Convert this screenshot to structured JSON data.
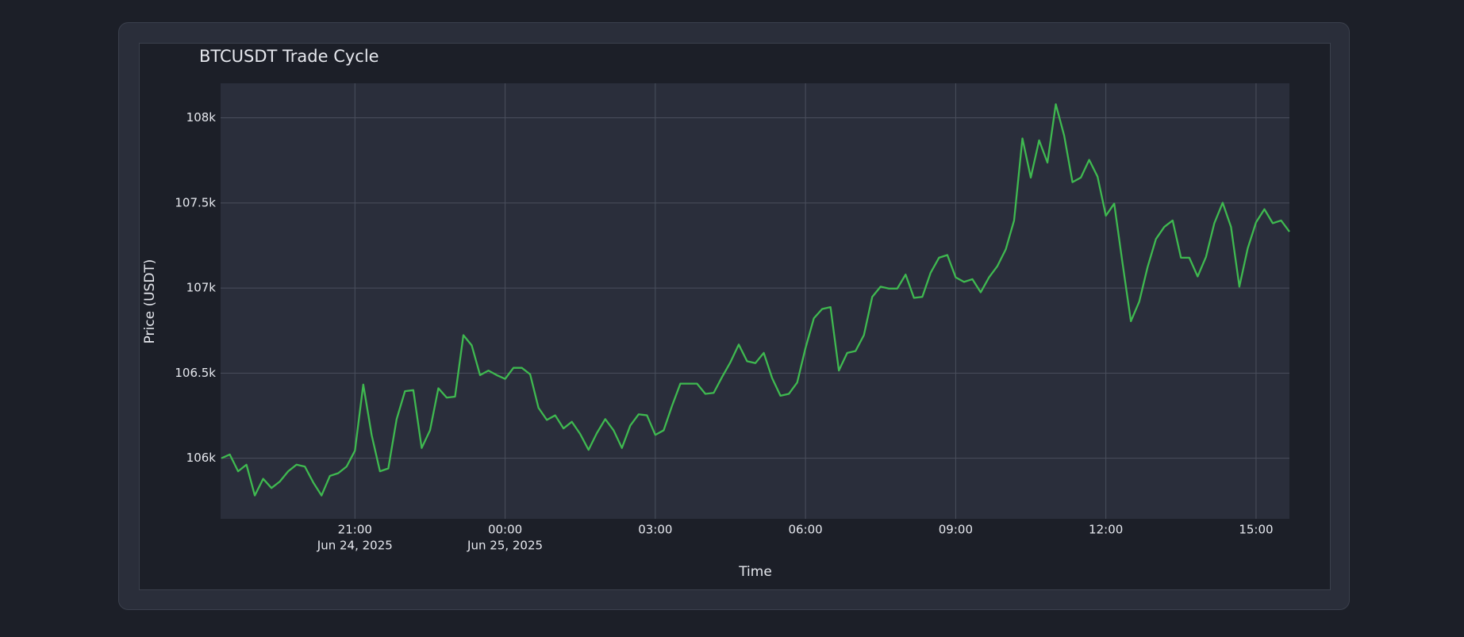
{
  "chart_data": {
    "type": "line",
    "title": "BTCUSDT Trade Cycle",
    "x_label": "Time",
    "y_label": "Price (USDT)",
    "color": "#3fb950",
    "grid": true,
    "xlim": [
      "2025-06-24 18:19",
      "2025-06-25 15:40"
    ],
    "xticks": [
      {
        "value": "2025-06-24 21:00",
        "label": [
          "21:00",
          "Jun 24, 2025"
        ]
      },
      {
        "value": "2025-06-25 00:00",
        "label": [
          "00:00",
          "Jun 25, 2025"
        ]
      },
      {
        "value": "2025-06-25 03:00",
        "label": "03:00"
      },
      {
        "value": "2025-06-25 06:00",
        "label": "06:00"
      },
      {
        "value": "2025-06-25 09:00",
        "label": "09:00"
      },
      {
        "value": "2025-06-25 12:00",
        "label": "12:00"
      },
      {
        "value": "2025-06-25 15:00",
        "label": "15:00"
      }
    ],
    "ylim": [
      105644,
      108203
    ],
    "yticks": [
      {
        "value": 106000,
        "label": "106k"
      },
      {
        "value": 106500,
        "label": "106.5k"
      },
      {
        "value": 107000,
        "label": "107k"
      },
      {
        "value": 107500,
        "label": "107.5k"
      },
      {
        "value": 108000,
        "label": "108k"
      }
    ],
    "x": [
      "2025-06-24 18:20",
      "2025-06-24 18:30",
      "2025-06-24 18:40",
      "2025-06-24 18:50",
      "2025-06-24 19:00",
      "2025-06-24 19:10",
      "2025-06-24 19:20",
      "2025-06-24 19:30",
      "2025-06-24 19:40",
      "2025-06-24 19:50",
      "2025-06-24 20:00",
      "2025-06-24 20:10",
      "2025-06-24 20:20",
      "2025-06-24 20:30",
      "2025-06-24 20:40",
      "2025-06-24 20:50",
      "2025-06-24 21:00",
      "2025-06-24 21:10",
      "2025-06-24 21:20",
      "2025-06-24 21:30",
      "2025-06-24 21:40",
      "2025-06-24 21:50",
      "2025-06-24 22:00",
      "2025-06-24 22:10",
      "2025-06-24 22:20",
      "2025-06-24 22:30",
      "2025-06-24 22:40",
      "2025-06-24 22:50",
      "2025-06-24 23:00",
      "2025-06-24 23:10",
      "2025-06-24 23:20",
      "2025-06-24 23:30",
      "2025-06-24 23:40",
      "2025-06-24 23:50",
      "2025-06-25 00:00",
      "2025-06-25 00:10",
      "2025-06-25 00:20",
      "2025-06-25 00:30",
      "2025-06-25 00:40",
      "2025-06-25 00:50",
      "2025-06-25 01:00",
      "2025-06-25 01:10",
      "2025-06-25 01:20",
      "2025-06-25 01:30",
      "2025-06-25 01:40",
      "2025-06-25 01:50",
      "2025-06-25 02:00",
      "2025-06-25 02:10",
      "2025-06-25 02:20",
      "2025-06-25 02:30",
      "2025-06-25 02:40",
      "2025-06-25 02:50",
      "2025-06-25 03:00",
      "2025-06-25 03:10",
      "2025-06-25 03:20",
      "2025-06-25 03:30",
      "2025-06-25 03:40",
      "2025-06-25 03:50",
      "2025-06-25 04:00",
      "2025-06-25 04:10",
      "2025-06-25 04:20",
      "2025-06-25 04:30",
      "2025-06-25 04:40",
      "2025-06-25 04:50",
      "2025-06-25 05:00",
      "2025-06-25 05:10",
      "2025-06-25 05:20",
      "2025-06-25 05:30",
      "2025-06-25 05:40",
      "2025-06-25 05:50",
      "2025-06-25 06:00",
      "2025-06-25 06:10",
      "2025-06-25 06:20",
      "2025-06-25 06:30",
      "2025-06-25 06:40",
      "2025-06-25 06:50",
      "2025-06-25 07:00",
      "2025-06-25 07:10",
      "2025-06-25 07:20",
      "2025-06-25 07:30",
      "2025-06-25 07:40",
      "2025-06-25 07:50",
      "2025-06-25 08:00",
      "2025-06-25 08:10",
      "2025-06-25 08:20",
      "2025-06-25 08:30",
      "2025-06-25 08:40",
      "2025-06-25 08:50",
      "2025-06-25 09:00",
      "2025-06-25 09:10",
      "2025-06-25 09:20",
      "2025-06-25 09:30",
      "2025-06-25 09:40",
      "2025-06-25 09:50",
      "2025-06-25 10:00",
      "2025-06-25 10:10",
      "2025-06-25 10:20",
      "2025-06-25 10:30",
      "2025-06-25 10:40",
      "2025-06-25 10:50",
      "2025-06-25 11:00",
      "2025-06-25 11:10",
      "2025-06-25 11:20",
      "2025-06-25 11:30",
      "2025-06-25 11:40",
      "2025-06-25 11:50",
      "2025-06-25 12:00",
      "2025-06-25 12:10",
      "2025-06-25 12:20",
      "2025-06-25 12:30",
      "2025-06-25 12:40",
      "2025-06-25 12:50",
      "2025-06-25 13:00",
      "2025-06-25 13:10",
      "2025-06-25 13:20",
      "2025-06-25 13:30",
      "2025-06-25 13:40",
      "2025-06-25 13:50",
      "2025-06-25 14:00",
      "2025-06-25 14:10",
      "2025-06-25 14:20",
      "2025-06-25 14:30",
      "2025-06-25 14:40",
      "2025-06-25 14:50",
      "2025-06-25 15:00",
      "2025-06-25 15:10",
      "2025-06-25 15:20",
      "2025-06-25 15:30",
      "2025-06-25 15:40"
    ],
    "values": [
      106000,
      106022,
      105923,
      105962,
      105781,
      105879,
      105825,
      105863,
      105923,
      105962,
      105951,
      105858,
      105781,
      105896,
      105912,
      105951,
      106044,
      106433,
      106137,
      105923,
      105940,
      106230,
      106394,
      106400,
      106060,
      106164,
      106411,
      106356,
      106362,
      106723,
      106663,
      106488,
      106515,
      106488,
      106466,
      106531,
      106531,
      106493,
      106296,
      106225,
      106252,
      106175,
      106214,
      106142,
      106049,
      106148,
      106230,
      106164,
      106060,
      106192,
      106258,
      106252,
      106137,
      106164,
      106307,
      106438,
      106438,
      106438,
      106378,
      106384,
      106477,
      106564,
      106668,
      106570,
      106559,
      106619,
      106471,
      106367,
      106378,
      106444,
      106647,
      106822,
      106877,
      106888,
      106515,
      106619,
      106630,
      106723,
      106948,
      107008,
      106997,
      106997,
      107079,
      106942,
      106948,
      107090,
      107178,
      107194,
      107063,
      107036,
      107052,
      106975,
      107063,
      107129,
      107227,
      107397,
      107879,
      107649,
      107868,
      107737,
      108080,
      107896,
      107622,
      107649,
      107753,
      107655,
      107425,
      107496,
      107145,
      106805,
      106920,
      107123,
      107288,
      107359,
      107397,
      107178,
      107178,
      107068,
      107183,
      107381,
      107501,
      107359,
      107008,
      107233,
      107386,
      107463,
      107381,
      107397,
      107331
    ]
  }
}
